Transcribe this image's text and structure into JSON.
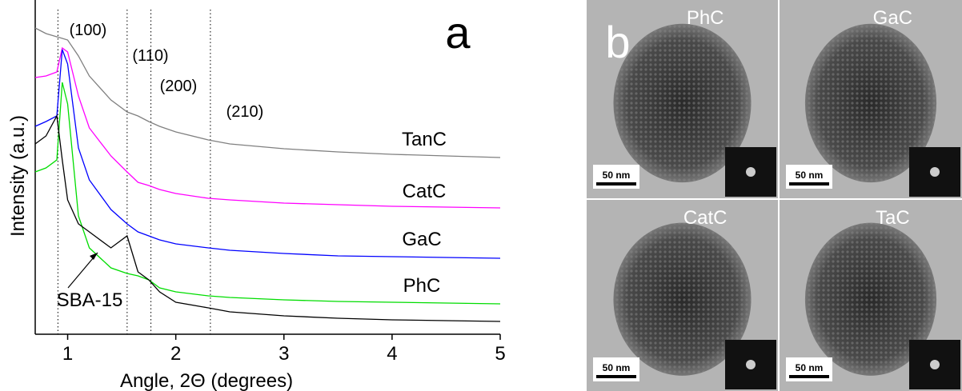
{
  "chart_data": {
    "type": "line",
    "panel_label": "a",
    "x_label": "Angle, 2Θ (degrees)",
    "y_label": "Intensity (a.u.)",
    "x": [
      0.7,
      0.8,
      0.9,
      0.95,
      1.0,
      1.1,
      1.2,
      1.4,
      1.55,
      1.65,
      1.75,
      1.85,
      2.0,
      2.3,
      2.5,
      3,
      3.5,
      4,
      4.5,
      5
    ],
    "series": [
      {
        "name": "TanC",
        "color": "#808080",
        "values": [
          383,
          376,
          372,
          370,
          368,
          348,
          323,
          293,
          278,
          273,
          266,
          260,
          253,
          243,
          238,
          232,
          228,
          225,
          223,
          221
        ]
      },
      {
        "name": "CatC",
        "color": "#ff00ff",
        "values": [
          321,
          323,
          328,
          358,
          353,
          298,
          258,
          223,
          203,
          190,
          186,
          181,
          176,
          170,
          168,
          164,
          162,
          160,
          159,
          158
        ]
      },
      {
        "name": "GaC",
        "color": "#0000ff",
        "values": [
          260,
          266,
          273,
          356,
          338,
          233,
          193,
          156,
          138,
          128,
          123,
          118,
          113,
          108,
          105,
          101,
          98,
          97,
          96,
          95
        ]
      },
      {
        "name": "PhC",
        "color": "#00dd00",
        "values": [
          203,
          208,
          218,
          315,
          288,
          148,
          108,
          83,
          76,
          73,
          68,
          58,
          53,
          48,
          46,
          43,
          41,
          40,
          39,
          38
        ]
      },
      {
        "name": "SBA-15",
        "color": "#000000",
        "values": [
          238,
          248,
          273,
          218,
          168,
          138,
          128,
          108,
          123,
          78,
          68,
          53,
          40,
          33,
          28,
          23,
          20,
          18,
          17,
          16
        ]
      }
    ],
    "reference_lines": [
      {
        "x": 0.91,
        "label": "(100)"
      },
      {
        "x": 1.55,
        "label": "(110)"
      },
      {
        "x": 1.77,
        "label": "(200)"
      },
      {
        "x": 2.32,
        "label": "(210)"
      }
    ],
    "xlim": [
      0.7,
      5
    ],
    "xticks": [
      1,
      2,
      3,
      4,
      5
    ],
    "ylim": [
      0,
      418
    ]
  },
  "panel_b": {
    "label": "b",
    "images": [
      {
        "label": "PhC",
        "scale": "50 nm"
      },
      {
        "label": "GaC",
        "scale": "50 nm"
      },
      {
        "label": "CatC",
        "scale": "50 nm"
      },
      {
        "label": "TaC",
        "scale": "50 nm"
      }
    ]
  }
}
